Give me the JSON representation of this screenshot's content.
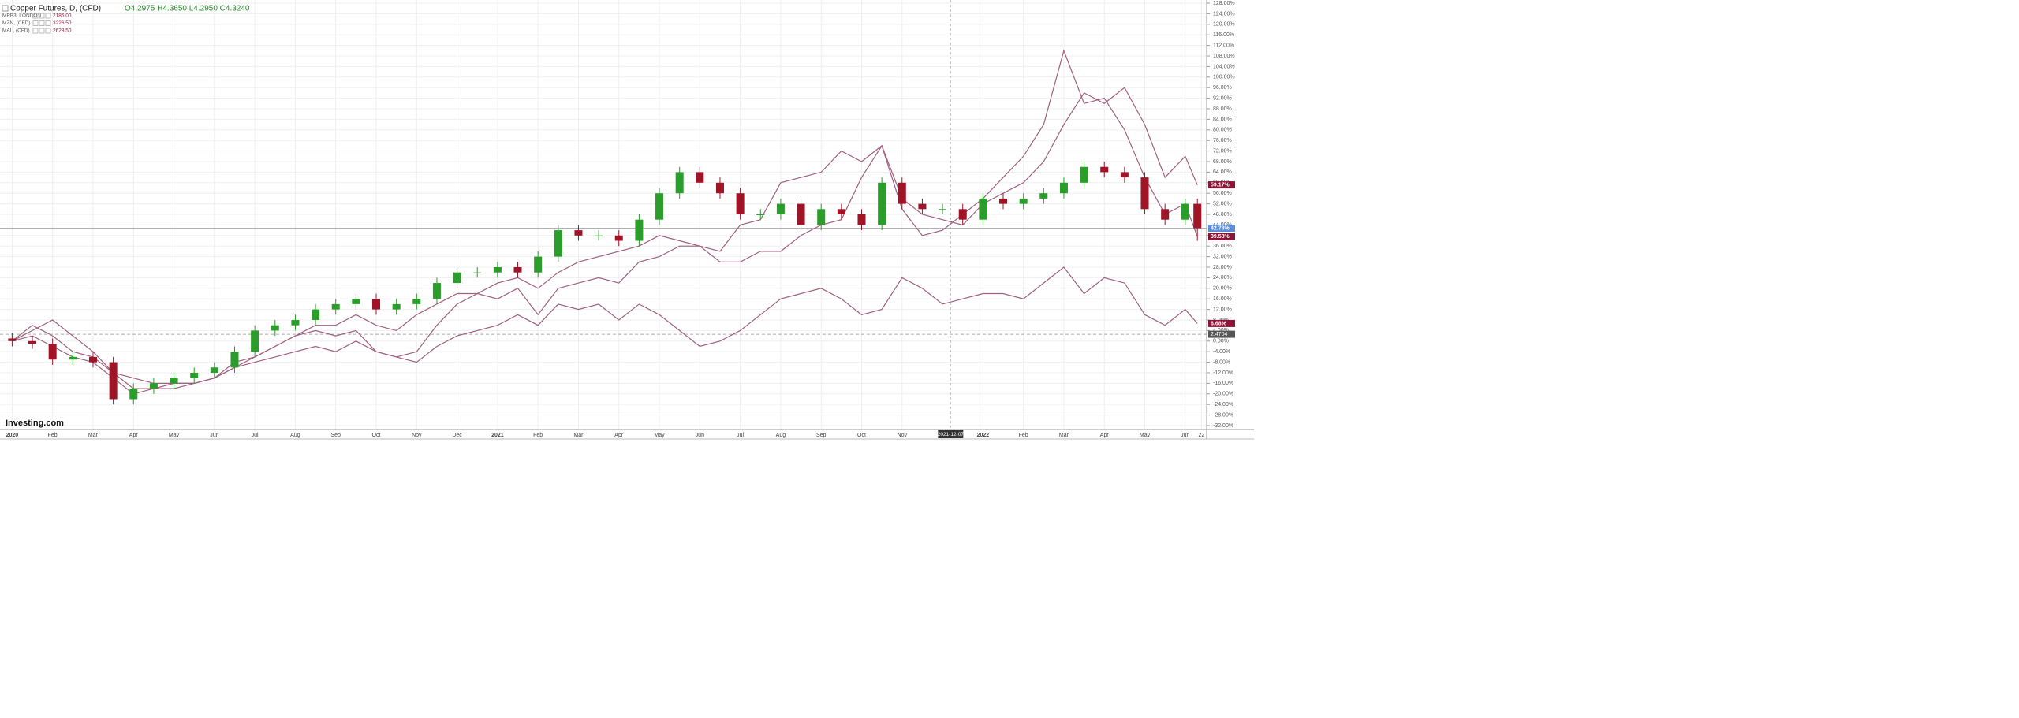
{
  "chart_data": {
    "type": "candlestick",
    "title": "Copper Futures, D, (CFD)",
    "ohlc_label": "O4.2975 H4.3650 L4.2950 C4.3240",
    "logo": "Investing.com",
    "x": [
      0,
      0.5,
      1,
      1.5,
      2,
      2.5,
      3,
      3.5,
      4,
      4.5,
      5,
      5.5,
      6,
      6.5,
      7,
      7.5,
      8,
      8.5,
      9,
      9.5,
      10,
      10.5,
      11,
      11.5,
      12,
      12.5,
      13,
      13.5,
      14,
      14.5,
      15,
      15.5,
      16,
      16.5,
      17,
      17.5,
      18,
      18.5,
      19,
      19.5,
      20,
      20.5,
      21,
      21.5,
      22,
      22.5,
      23,
      23.5,
      24,
      24.5,
      25,
      25.5,
      26,
      26.5,
      27,
      27.5,
      28,
      28.5,
      29,
      29.3
    ],
    "candles": {
      "open": [
        1,
        0,
        -1,
        -7,
        -6,
        -8,
        -22,
        -18,
        -16,
        -14,
        -12,
        -10,
        -4,
        4,
        6,
        8,
        12,
        14,
        16,
        12,
        14,
        16,
        22,
        26,
        26,
        28,
        26,
        32,
        42,
        40,
        40,
        38,
        46,
        56,
        64,
        60,
        56,
        48,
        48,
        52,
        44,
        50,
        48,
        44,
        60,
        52,
        50,
        50,
        46,
        54,
        52,
        54,
        56,
        60,
        66,
        64,
        62,
        50,
        46,
        52
      ],
      "high": [
        3,
        2,
        1,
        -4,
        -4,
        -6,
        -16,
        -14,
        -12,
        -10,
        -8,
        -2,
        6,
        8,
        10,
        14,
        16,
        18,
        18,
        16,
        18,
        24,
        28,
        28,
        30,
        30,
        34,
        44,
        44,
        42,
        42,
        48,
        58,
        66,
        66,
        62,
        58,
        50,
        54,
        54,
        52,
        52,
        50,
        62,
        62,
        54,
        52,
        52,
        56,
        56,
        56,
        58,
        62,
        68,
        68,
        66,
        64,
        52,
        54,
        54
      ],
      "low": [
        -2,
        -3,
        -9,
        -9,
        -10,
        -24,
        -24,
        -20,
        -18,
        -16,
        -14,
        -12,
        -6,
        2,
        4,
        6,
        10,
        12,
        10,
        10,
        12,
        14,
        20,
        24,
        24,
        24,
        24,
        30,
        38,
        38,
        36,
        36,
        44,
        54,
        58,
        54,
        46,
        46,
        46,
        42,
        42,
        46,
        42,
        42,
        50,
        48,
        48,
        44,
        44,
        50,
        50,
        52,
        54,
        58,
        62,
        60,
        48,
        44,
        44,
        38
      ],
      "close": [
        0,
        -1,
        -7,
        -6,
        -8,
        -22,
        -18,
        -16,
        -14,
        -12,
        -10,
        -4,
        4,
        6,
        8,
        12,
        14,
        16,
        12,
        14,
        16,
        22,
        26,
        26,
        28,
        26,
        32,
        42,
        40,
        40,
        38,
        46,
        56,
        64,
        60,
        56,
        48,
        48,
        52,
        44,
        50,
        48,
        44,
        60,
        52,
        50,
        50,
        46,
        54,
        52,
        54,
        56,
        60,
        66,
        64,
        62,
        50,
        46,
        52,
        42.78
      ],
      "up_color": "#2a9d2a",
      "down_color": "#a01428",
      "end_label": "42.78%",
      "label_color": "#5b8fd9"
    },
    "series": [
      {
        "name": "MPB3, LONDON",
        "last_price": "2186.00",
        "color": "#a0607e",
        "end_label": "6.68%",
        "values": [
          0,
          6,
          2,
          -4,
          -6,
          -12,
          -18,
          -18,
          -16,
          -16,
          -14,
          -10,
          -8,
          -6,
          -4,
          -2,
          -4,
          0,
          -4,
          -6,
          -8,
          -2,
          2,
          4,
          6,
          10,
          6,
          14,
          12,
          14,
          8,
          14,
          10,
          4,
          -2,
          0,
          4,
          10,
          16,
          18,
          20,
          16,
          10,
          12,
          24,
          20,
          14,
          16,
          18,
          18,
          16,
          22,
          28,
          18,
          24,
          22,
          10,
          6,
          12,
          6.68
        ]
      },
      {
        "name": "MZN, (CFD)",
        "last_price": "3226.50",
        "color": "#a0607e",
        "end_label": "59.17%",
        "values": [
          0,
          4,
          8,
          2,
          -4,
          -12,
          -14,
          -16,
          -16,
          -16,
          -14,
          -10,
          -6,
          -2,
          2,
          6,
          6,
          10,
          6,
          4,
          10,
          14,
          18,
          18,
          22,
          24,
          20,
          26,
          30,
          32,
          34,
          36,
          40,
          38,
          36,
          34,
          44,
          46,
          60,
          62,
          64,
          72,
          68,
          74,
          54,
          48,
          46,
          44,
          52,
          56,
          60,
          68,
          82,
          94,
          90,
          96,
          82,
          62,
          70,
          59.17
        ]
      },
      {
        "name": "MAL, (CFD)",
        "last_price": "2628.50",
        "color": "#a0607e",
        "end_label": "39.58%",
        "values": [
          0,
          2,
          -2,
          -6,
          -8,
          -14,
          -20,
          -18,
          -18,
          -16,
          -14,
          -8,
          -6,
          -2,
          2,
          4,
          2,
          4,
          -4,
          -6,
          -4,
          6,
          14,
          18,
          16,
          20,
          10,
          20,
          22,
          24,
          22,
          30,
          32,
          36,
          36,
          30,
          30,
          34,
          34,
          40,
          44,
          46,
          62,
          74,
          50,
          40,
          42,
          48,
          54,
          62,
          70,
          82,
          110,
          90,
          92,
          80,
          62,
          48,
          52,
          39.58
        ]
      }
    ],
    "badge_color": "#8b1538",
    "xlim": [
      -0.3,
      29.53
    ],
    "xticks": [
      {
        "value": 0,
        "label": "2020"
      },
      {
        "value": 1,
        "label": "Feb"
      },
      {
        "value": 2,
        "label": "Mar"
      },
      {
        "value": 3,
        "label": "Apr"
      },
      {
        "value": 4,
        "label": "May"
      },
      {
        "value": 5,
        "label": "Jun"
      },
      {
        "value": 6,
        "label": "Jul"
      },
      {
        "value": 7,
        "label": "Aug"
      },
      {
        "value": 8,
        "label": "Sep"
      },
      {
        "value": 9,
        "label": "Oct"
      },
      {
        "value": 10,
        "label": "Nov"
      },
      {
        "value": 11,
        "label": "Dec"
      },
      {
        "value": 12,
        "label": "2021"
      },
      {
        "value": 13,
        "label": "Feb"
      },
      {
        "value": 14,
        "label": "Mar"
      },
      {
        "value": 15,
        "label": "Apr"
      },
      {
        "value": 16,
        "label": "May"
      },
      {
        "value": 17,
        "label": "Jun"
      },
      {
        "value": 18,
        "label": "Jul"
      },
      {
        "value": 19,
        "label": "Aug"
      },
      {
        "value": 20,
        "label": "Sep"
      },
      {
        "value": 21,
        "label": "Oct"
      },
      {
        "value": 22,
        "label": "Nov"
      },
      {
        "value": 24,
        "label": "2022"
      },
      {
        "value": 25,
        "label": "Feb"
      },
      {
        "value": 26,
        "label": "Mar"
      },
      {
        "value": 27,
        "label": "Apr"
      },
      {
        "value": 28,
        "label": "May"
      },
      {
        "value": 29,
        "label": "Jun"
      },
      {
        "value": 29.4,
        "label": "22"
      }
    ],
    "ylim": [
      -33.5,
      129.2
    ],
    "yticks": [
      {
        "value": 128,
        "label": "128.00%"
      },
      {
        "value": 124,
        "label": "124.00%"
      },
      {
        "value": 120,
        "label": "120.00%"
      },
      {
        "value": 116,
        "label": "116.00%"
      },
      {
        "value": 112,
        "label": "112.00%"
      },
      {
        "value": 108,
        "label": "108.00%"
      },
      {
        "value": 104,
        "label": "104.00%"
      },
      {
        "value": 100,
        "label": "100.00%"
      },
      {
        "value": 96,
        "label": "96.00%"
      },
      {
        "value": 92,
        "label": "92.00%"
      },
      {
        "value": 88,
        "label": "88.00%"
      },
      {
        "value": 84,
        "label": "84.00%"
      },
      {
        "value": 80,
        "label": "80.00%"
      },
      {
        "value": 76,
        "label": "76.00%"
      },
      {
        "value": 72,
        "label": "72.00%"
      },
      {
        "value": 68,
        "label": "68.00%"
      },
      {
        "value": 64,
        "label": "64.00%"
      },
      {
        "value": 60,
        "label": "60.00%"
      },
      {
        "value": 56,
        "label": "56.00%"
      },
      {
        "value": 52,
        "label": "52.00%"
      },
      {
        "value": 48,
        "label": "48.00%"
      },
      {
        "value": 44,
        "label": "44.00%"
      },
      {
        "value": 40,
        "label": "40.00%"
      },
      {
        "value": 36,
        "label": "36.00%"
      },
      {
        "value": 32,
        "label": "32.00%"
      },
      {
        "value": 28,
        "label": "28.00%"
      },
      {
        "value": 24,
        "label": "24.00%"
      },
      {
        "value": 20,
        "label": "20.00%"
      },
      {
        "value": 16,
        "label": "16.00%"
      },
      {
        "value": 12,
        "label": "12.00%"
      },
      {
        "value": 8,
        "label": "8.00%"
      },
      {
        "value": 4,
        "label": "4.00%"
      },
      {
        "value": 0,
        "label": "0.00%"
      },
      {
        "value": -4,
        "label": "-4.00%"
      },
      {
        "value": -8,
        "label": "-8.00%"
      },
      {
        "value": -12,
        "label": "-12.00%"
      },
      {
        "value": -16,
        "label": "-16.00%"
      },
      {
        "value": -20,
        "label": "-20.00%"
      },
      {
        "value": -24,
        "label": "-24.00%"
      },
      {
        "value": -28,
        "label": "-28.00%"
      },
      {
        "value": -32,
        "label": "-32.00%"
      }
    ],
    "grid": true,
    "crosshair": {
      "x": 23.2,
      "label": "2021-12-07"
    },
    "reference_line": {
      "value": 2.6,
      "label": "2.4704"
    }
  }
}
